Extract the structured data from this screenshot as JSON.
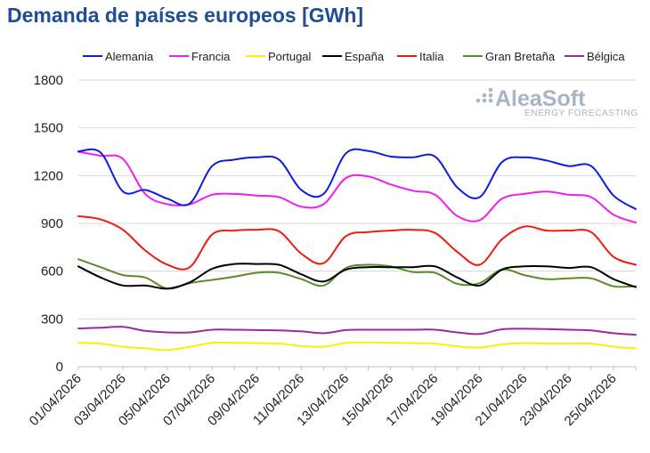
{
  "page": {
    "title": "Demanda de países europeos [GWh]"
  },
  "watermark": {
    "brand": "AleaSoft",
    "tagline": "ENERGY FORECASTING"
  },
  "chart_data": {
    "type": "line",
    "title": "Demanda de países europeos [GWh]",
    "xlabel": "",
    "ylabel": "",
    "ylim": [
      0,
      1800
    ],
    "yticks": [
      0,
      300,
      600,
      900,
      1200,
      1500,
      1800
    ],
    "grid": true,
    "legend": "top",
    "x": [
      "01/04/2026",
      "02/04/2026",
      "03/04/2026",
      "04/04/2026",
      "05/04/2026",
      "06/04/2026",
      "07/04/2026",
      "08/04/2026",
      "09/04/2026",
      "10/04/2026",
      "11/04/2026",
      "12/04/2026",
      "13/04/2026",
      "14/04/2026",
      "15/04/2026",
      "16/04/2026",
      "17/04/2026",
      "18/04/2026",
      "19/04/2026",
      "20/04/2026",
      "21/04/2026",
      "22/04/2026",
      "23/04/2026",
      "24/04/2026",
      "25/04/2026",
      "26/04/2026"
    ],
    "xticks": [
      "01/04/2026",
      "03/04/2026",
      "05/04/2026",
      "07/04/2026",
      "09/04/2026",
      "11/04/2026",
      "13/04/2026",
      "15/04/2026",
      "17/04/2026",
      "19/04/2026",
      "21/04/2026",
      "23/04/2026",
      "25/04/2026"
    ],
    "series": [
      {
        "name": "Alemania",
        "color": "#0b1ee0",
        "values": [
          1352,
          1345,
          1100,
          1110,
          1055,
          1025,
          1260,
          1300,
          1315,
          1300,
          1110,
          1085,
          1340,
          1355,
          1320,
          1315,
          1320,
          1125,
          1065,
          1285,
          1315,
          1295,
          1260,
          1260,
          1075,
          990
        ]
      },
      {
        "name": "Francia",
        "color": "#f01ef0",
        "values": [
          1350,
          1325,
          1305,
          1085,
          1020,
          1020,
          1080,
          1085,
          1075,
          1065,
          1005,
          1020,
          1185,
          1195,
          1145,
          1105,
          1080,
          945,
          920,
          1055,
          1085,
          1100,
          1080,
          1065,
          955,
          905
        ]
      },
      {
        "name": "Portugal",
        "color": "#f2f20a",
        "values": [
          150,
          145,
          125,
          115,
          105,
          125,
          150,
          150,
          148,
          145,
          130,
          125,
          150,
          152,
          150,
          148,
          145,
          128,
          120,
          140,
          148,
          145,
          145,
          145,
          125,
          115
        ]
      },
      {
        "name": "España",
        "color": "#000000",
        "values": [
          630,
          560,
          510,
          510,
          490,
          530,
          615,
          645,
          645,
          640,
          580,
          535,
          610,
          625,
          625,
          625,
          630,
          560,
          510,
          610,
          630,
          630,
          620,
          625,
          550,
          500
        ]
      },
      {
        "name": "Italia",
        "color": "#ee1c10",
        "values": [
          945,
          925,
          860,
          730,
          640,
          625,
          830,
          855,
          860,
          850,
          710,
          650,
          820,
          845,
          855,
          860,
          840,
          720,
          640,
          800,
          880,
          855,
          855,
          845,
          690,
          640
        ]
      },
      {
        "name": "Gran Bretaña",
        "color": "#5a8c28",
        "values": [
          675,
          625,
          575,
          560,
          490,
          525,
          545,
          565,
          590,
          590,
          550,
          510,
          620,
          640,
          630,
          595,
          590,
          520,
          525,
          610,
          575,
          550,
          555,
          555,
          505,
          505
        ]
      },
      {
        "name": "Bélgica",
        "color": "#9b2b9b",
        "values": [
          240,
          245,
          250,
          225,
          215,
          215,
          232,
          232,
          230,
          228,
          222,
          210,
          230,
          232,
          232,
          232,
          232,
          215,
          205,
          235,
          238,
          236,
          232,
          228,
          210,
          200
        ]
      }
    ]
  }
}
